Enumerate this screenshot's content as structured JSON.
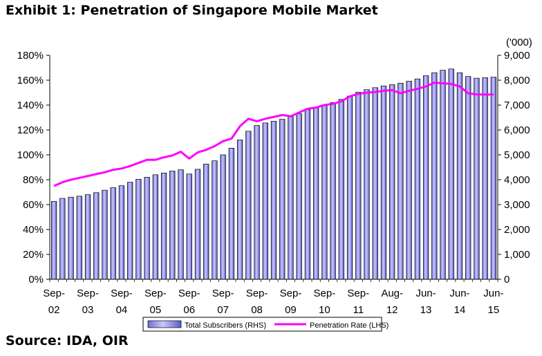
{
  "exhibit": {
    "title": "Exhibit 1: Penetration of Singapore Mobile Market",
    "source": "Source: IDA, OIR"
  },
  "chart_data": {
    "type": "bar+line",
    "title": "Exhibit 1: Penetration of Singapore Mobile Market",
    "right_unit_label": "('000)",
    "left_axis": {
      "ylim": [
        0,
        180
      ],
      "ticks": [
        "0%",
        "20%",
        "40%",
        "60%",
        "80%",
        "100%",
        "120%",
        "140%",
        "160%",
        "180%"
      ]
    },
    "right_axis": {
      "ylim": [
        0,
        9000
      ],
      "ticks": [
        "0",
        "1,000",
        "2,000",
        "3,000",
        "4,000",
        "5,000",
        "6,000",
        "7,000",
        "8,000",
        "9,000"
      ]
    },
    "x_tick_labels": [
      {
        "line1": "Sep-",
        "line2": "02",
        "index": 0
      },
      {
        "line1": "Sep-",
        "line2": "03",
        "index": 4
      },
      {
        "line1": "Sep-",
        "line2": "04",
        "index": 8
      },
      {
        "line1": "Sep-",
        "line2": "05",
        "index": 12
      },
      {
        "line1": "Sep-",
        "line2": "06",
        "index": 16
      },
      {
        "line1": "Sep-",
        "line2": "07",
        "index": 20
      },
      {
        "line1": "Sep-",
        "line2": "08",
        "index": 24
      },
      {
        "line1": "Sep-",
        "line2": "09",
        "index": 28
      },
      {
        "line1": "Sep-",
        "line2": "10",
        "index": 32
      },
      {
        "line1": "Sep-",
        "line2": "11",
        "index": 36
      },
      {
        "line1": "Aug-",
        "line2": "12",
        "index": 40
      },
      {
        "line1": "Jun-",
        "line2": "13",
        "index": 44
      },
      {
        "line1": "Jun-",
        "line2": "14",
        "index": 48
      },
      {
        "line1": "Jun-",
        "line2": "15",
        "index": 52
      }
    ],
    "series": [
      {
        "name": "Total Subscribers (RHS)",
        "type": "bar",
        "axis": "right",
        "color": "#9c9cf0",
        "values": [
          3130,
          3250,
          3300,
          3340,
          3400,
          3480,
          3580,
          3680,
          3760,
          3900,
          4020,
          4100,
          4200,
          4270,
          4350,
          4400,
          4230,
          4420,
          4630,
          4760,
          5000,
          5270,
          5600,
          5950,
          6180,
          6280,
          6350,
          6430,
          6530,
          6650,
          6820,
          6900,
          7000,
          7100,
          7230,
          7360,
          7520,
          7620,
          7700,
          7770,
          7820,
          7880,
          7960,
          8050,
          8180,
          8300,
          8400,
          8450,
          8300,
          8150,
          8080,
          8100,
          8120
        ]
      },
      {
        "name": "Penetration Rate (LHS)",
        "type": "line",
        "axis": "left",
        "color": "#ff00ff",
        "values": [
          75,
          78,
          80,
          81.5,
          83,
          84.5,
          86,
          88,
          89,
          91,
          93.5,
          96,
          96,
          98,
          99.5,
          102.5,
          97,
          102,
          104,
          107,
          111,
          113,
          123,
          129,
          127,
          129,
          130.5,
          132,
          131,
          134,
          137,
          138,
          140,
          141,
          143,
          147,
          149,
          150,
          150.5,
          151.5,
          152,
          149.5,
          151.5,
          153,
          155,
          158,
          157.5,
          157,
          155,
          149.5,
          148.5,
          148.5,
          148.5
        ]
      }
    ],
    "legend": {
      "position": "bottom"
    },
    "grid": false
  }
}
